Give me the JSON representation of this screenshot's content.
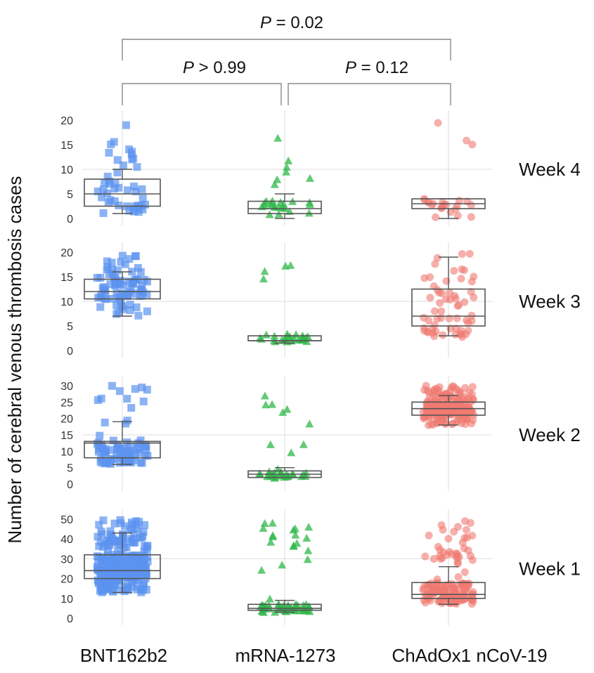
{
  "chart_data": {
    "type": "box-jitter",
    "ylabel": "Number of cerebral venous thrombosis cases",
    "categories": [
      "BNT162b2",
      "mRNA-1273",
      "ChAdOx1 nCoV-19"
    ],
    "marker_colors": [
      "#5b93ef",
      "#2fb84a",
      "#f07a72"
    ],
    "marker_shapes": [
      "square",
      "triangle",
      "circle"
    ],
    "comparisons": [
      {
        "label_italic": "P",
        "label_rest": " = 0.02",
        "from": 0,
        "to": 2
      },
      {
        "label_italic": "P",
        "label_rest": " > 0.99",
        "from": 0,
        "to": 1
      },
      {
        "label_italic": "P",
        "label_rest": " = 0.12",
        "from": 1,
        "to": 2
      }
    ],
    "panels": [
      {
        "label": "Week 4",
        "ylim": [
          0,
          20
        ],
        "ticks": [
          0,
          5,
          10,
          15,
          20
        ],
        "boxes": [
          {
            "whisker_low": 1,
            "q1": 2.5,
            "median": 5,
            "q3": 8,
            "whisker_high": 10
          },
          {
            "whisker_low": 0,
            "q1": 1,
            "median": 2,
            "q3": 3.5,
            "whisker_high": 5
          },
          {
            "whisker_low": 0,
            "q1": 2,
            "median": 3,
            "q3": 4,
            "whisker_high": 4
          }
        ],
        "counts": [
          45,
          28,
          24
        ]
      },
      {
        "label": "Week 3",
        "ylim": [
          0,
          20
        ],
        "ticks": [
          0,
          5,
          10,
          15,
          20
        ],
        "boxes": [
          {
            "whisker_low": 7,
            "q1": 10.5,
            "median": 12,
            "q3": 14.5,
            "whisker_high": 16
          },
          {
            "whisker_low": 1.5,
            "q1": 2,
            "median": 2,
            "q3": 3,
            "whisker_high": 3
          },
          {
            "whisker_low": 3,
            "q1": 5,
            "median": 7,
            "q3": 12.5,
            "whisker_high": 19
          }
        ],
        "counts": [
          80,
          30,
          60
        ]
      },
      {
        "label": "Week 2",
        "ylim": [
          0,
          30
        ],
        "ticks": [
          0,
          5,
          10,
          15,
          20,
          25,
          30
        ],
        "boxes": [
          {
            "whisker_low": 6,
            "q1": 8,
            "median": 12.5,
            "q3": 13,
            "whisker_high": 19
          },
          {
            "whisker_low": 2,
            "q1": 2,
            "median": 3,
            "q3": 4,
            "whisker_high": 5
          },
          {
            "whisker_low": 18,
            "q1": 21,
            "median": 23,
            "q3": 25,
            "whisker_high": 27
          }
        ],
        "counts": [
          80,
          35,
          200
        ]
      },
      {
        "label": "Week 1",
        "ylim": [
          0,
          50
        ],
        "ticks": [
          0,
          10,
          20,
          30,
          40,
          50
        ],
        "boxes": [
          {
            "whisker_low": 13,
            "q1": 20,
            "median": 24,
            "q3": 32,
            "whisker_high": 43
          },
          {
            "whisker_low": 3,
            "q1": 4,
            "median": 5,
            "q3": 7,
            "whisker_high": 9
          },
          {
            "whisker_low": 7,
            "q1": 10,
            "median": 12,
            "q3": 18,
            "whisker_high": 26
          }
        ],
        "counts": [
          250,
          65,
          160
        ]
      }
    ]
  }
}
